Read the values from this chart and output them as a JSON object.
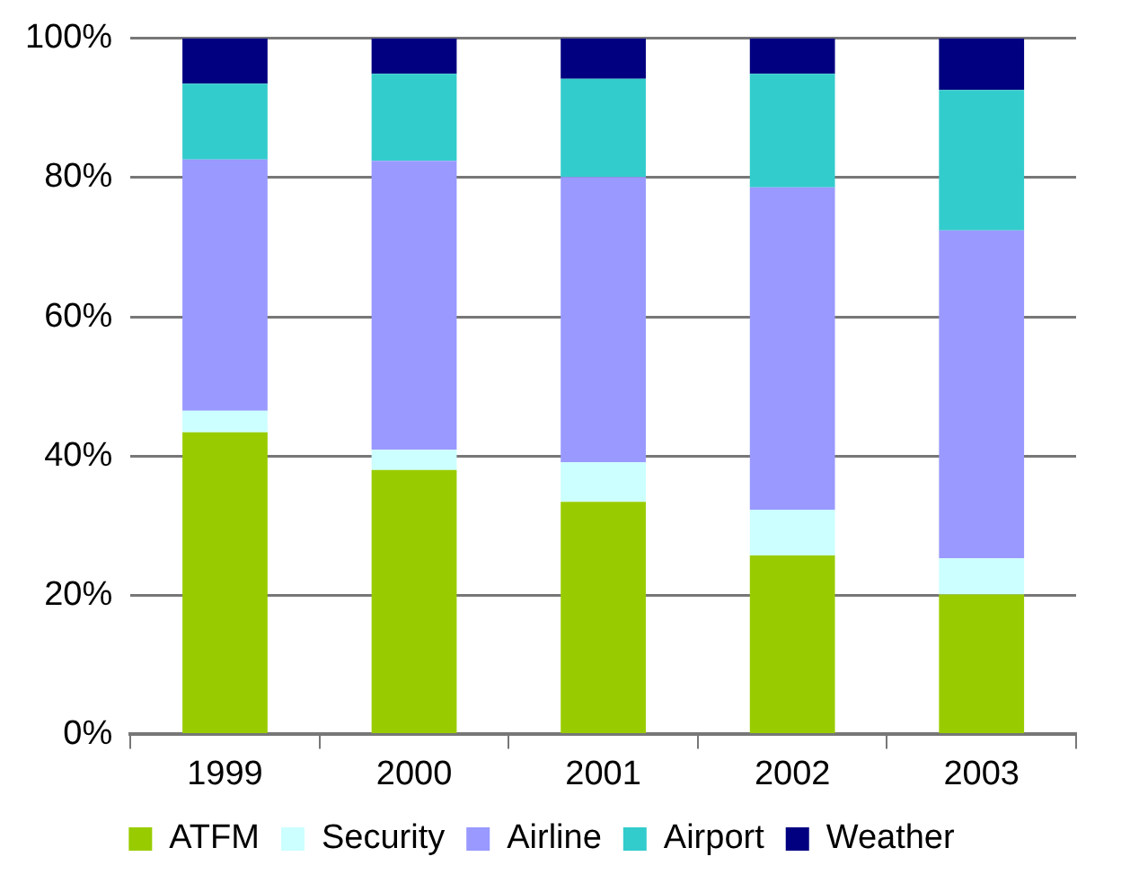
{
  "chart_data": {
    "type": "bar",
    "stacked": true,
    "categories": [
      "1999",
      "2000",
      "2001",
      "2002",
      "2003"
    ],
    "series": [
      {
        "name": "ATFM",
        "color": "#99cc00",
        "values": [
          43.4,
          38,
          33.4,
          25.7,
          20.1
        ]
      },
      {
        "name": "Security",
        "color": "#ccffff",
        "values": [
          3.1,
          2.9,
          5.7,
          6.6,
          5.2
        ]
      },
      {
        "name": "Airline",
        "color": "#9999ff",
        "values": [
          36.1,
          41.5,
          41,
          46.3,
          47.1
        ]
      },
      {
        "name": "Airport",
        "color": "#33cccc",
        "values": [
          10.9,
          12.5,
          14.1,
          16.3,
          20.2
        ]
      },
      {
        "name": "Weather",
        "color": "#000080",
        "values": [
          6.5,
          5.1,
          5.8,
          5.1,
          7.4
        ]
      }
    ],
    "ylim": [
      0,
      100
    ],
    "yticks": [
      {
        "value": 0,
        "label": "0%"
      },
      {
        "value": 20,
        "label": "20%"
      },
      {
        "value": 40,
        "label": "40%"
      },
      {
        "value": 60,
        "label": "60%"
      },
      {
        "value": 80,
        "label": "80%"
      },
      {
        "value": 100,
        "label": "100%"
      }
    ],
    "grid": "y",
    "legend": "bottom"
  }
}
